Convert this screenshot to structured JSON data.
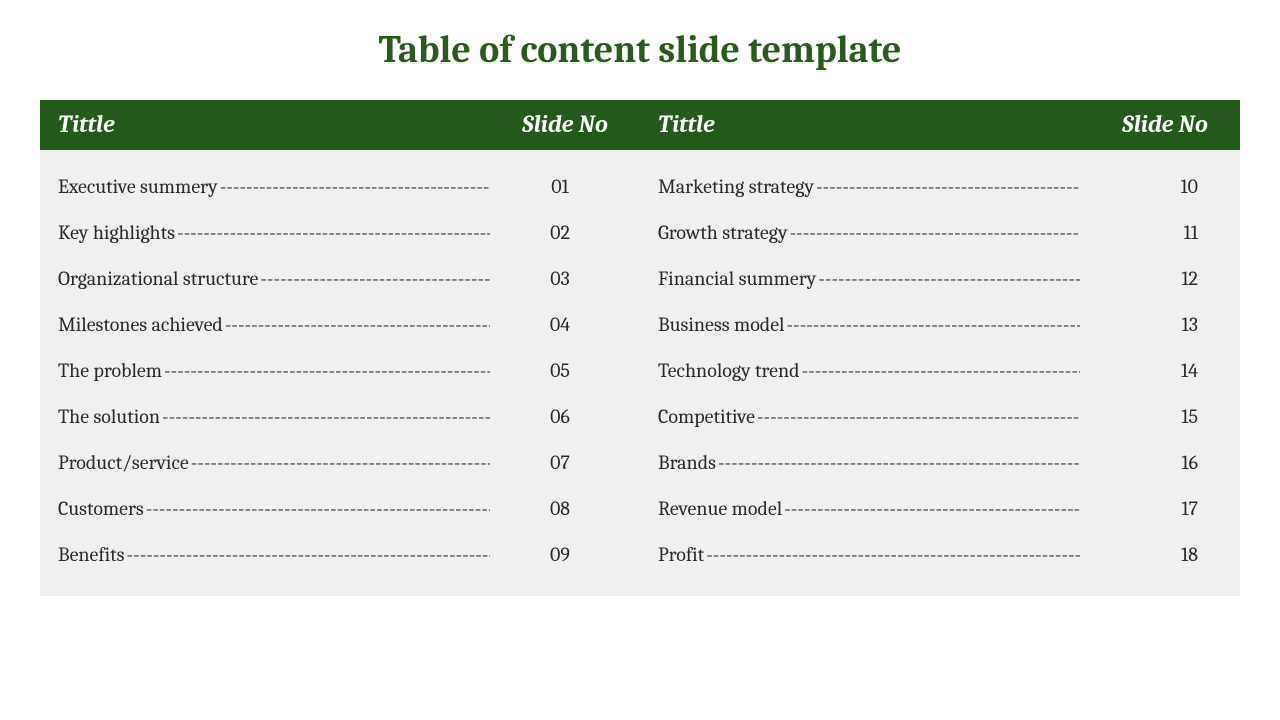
{
  "title": "Table of content slide template",
  "colors": {
    "title_color": "#2a5a1e",
    "header_bg": "#23591a",
    "header_text": "#ffffff",
    "body_bg": "#f0f0ee",
    "text": "#2a2a2a",
    "page_bg": "#ffffff"
  },
  "typography": {
    "font_family": "Cambria, Georgia, serif",
    "title_fontsize": 38,
    "header_fontsize": 24,
    "row_fontsize": 20,
    "header_italic": true,
    "header_bold": true
  },
  "headers": {
    "title_label": "Tittle",
    "number_label": "Slide No"
  },
  "dash_fill": "-----------------------------------------------------------",
  "left_column": [
    {
      "label": "Executive summery",
      "num": "01"
    },
    {
      "label": "Key highlights ",
      "num": "02"
    },
    {
      "label": "Organizational structure ",
      "num": "03"
    },
    {
      "label": "Milestones achieved ",
      "num": "04"
    },
    {
      "label": "The problem ",
      "num": "05"
    },
    {
      "label": "The solution ",
      "num": "06"
    },
    {
      "label": "Product/service ",
      "num": "07"
    },
    {
      "label": "Customers ",
      "num": "08"
    },
    {
      "label": "Benefits ",
      "num": "09"
    }
  ],
  "right_column": [
    {
      "label": "Marketing strategy ",
      "num": "10"
    },
    {
      "label": "Growth strategy ",
      "num": "11"
    },
    {
      "label": "Financial summery ",
      "num": "12"
    },
    {
      "label": "Business model ",
      "num": "13"
    },
    {
      "label": "Technology trend ",
      "num": "14"
    },
    {
      "label": "Competitive ",
      "num": "15"
    },
    {
      "label": "Brands ",
      "num": "16"
    },
    {
      "label": "Revenue model ",
      "num": "17"
    },
    {
      "label": "Profit",
      "num": "18"
    }
  ]
}
